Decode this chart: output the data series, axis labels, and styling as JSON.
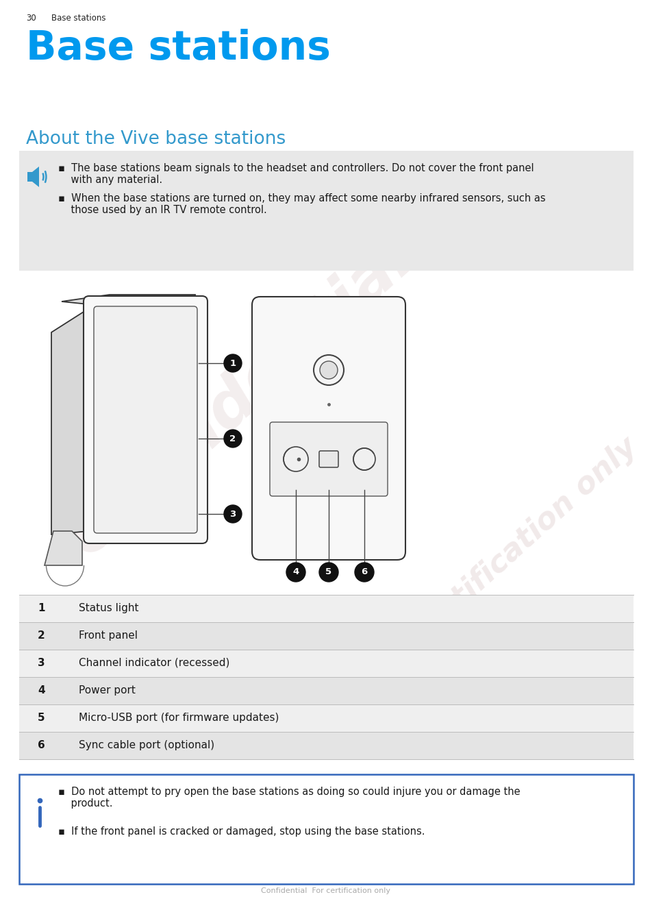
{
  "page_num": "30",
  "page_section": "Base stations",
  "main_title": "Base stations",
  "sub_title": "About the Vive base stations",
  "note_bullet1_line1": "▪  The base stations beam signals to the headset and controllers. Do not cover the front panel",
  "note_bullet1_line2": "    with any material.",
  "note_bullet2_line1": "▪  When the base stations are turned on, they may affect some nearby infrared sensors, such as",
  "note_bullet2_line2": "    those used by an IR TV remote control.",
  "warn_bullet1_line1": "▪  Do not attempt to pry open the base stations as doing so could injure you or damage the",
  "warn_bullet1_line2": "    product.",
  "warn_bullet2": "▪  If the front panel is cracked or damaged, stop using the base stations.",
  "table_items": [
    [
      "1",
      "Status light"
    ],
    [
      "2",
      "Front panel"
    ],
    [
      "3",
      "Channel indicator (recessed)"
    ],
    [
      "4",
      "Power port"
    ],
    [
      "5",
      "Micro-USB port (for firmware updates)"
    ],
    [
      "6",
      "Sync cable port (optional)"
    ]
  ],
  "blue_color": "#0099EE",
  "sub_heading_blue": "#3399CC",
  "text_color": "#1a1a1a",
  "bg_gray": "#E8E8E8",
  "table_row_colors": [
    "#EFEFEF",
    "#E4E4E4"
  ],
  "warning_border": "#3366BB",
  "watermark_color": "#C0A0A0",
  "line_color": "#444444",
  "device_face": "#F8F8F8",
  "device_edge": "#333333"
}
